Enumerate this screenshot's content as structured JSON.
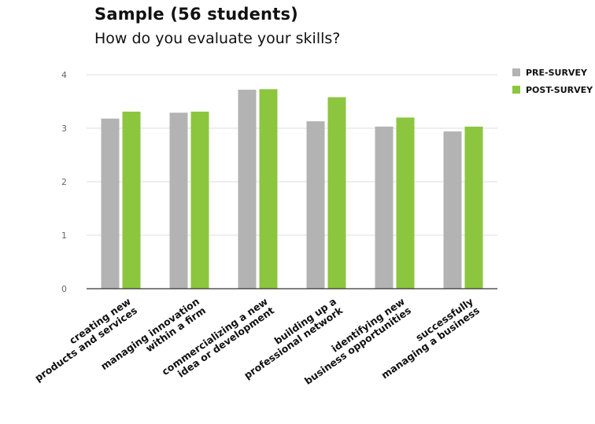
{
  "chart_data": {
    "type": "bar",
    "title": "Sample (56 students)",
    "subtitle": "How do you evaluate your skills?",
    "xlabel": "",
    "ylabel": "",
    "ylim": [
      0,
      4
    ],
    "yticks": [
      0,
      1,
      2,
      3,
      4
    ],
    "grid": true,
    "legend_position": "top-right",
    "categories": [
      [
        "creating new",
        "products and services"
      ],
      [
        "managing innovation",
        "within a firm"
      ],
      [
        "commercializing a new",
        "idea or development"
      ],
      [
        "building up a",
        "professional network"
      ],
      [
        "identifying new",
        "business  opportunities"
      ],
      [
        "successfully",
        "managing a business"
      ]
    ],
    "series": [
      {
        "name": "PRE-SURVEY",
        "color": "#b3b3b3",
        "values": [
          3.18,
          3.29,
          3.72,
          3.13,
          3.03,
          2.94
        ]
      },
      {
        "name": "POST-SURVEY",
        "color": "#8cc63f",
        "values": [
          3.31,
          3.31,
          3.73,
          3.58,
          3.2,
          3.03
        ]
      }
    ]
  }
}
